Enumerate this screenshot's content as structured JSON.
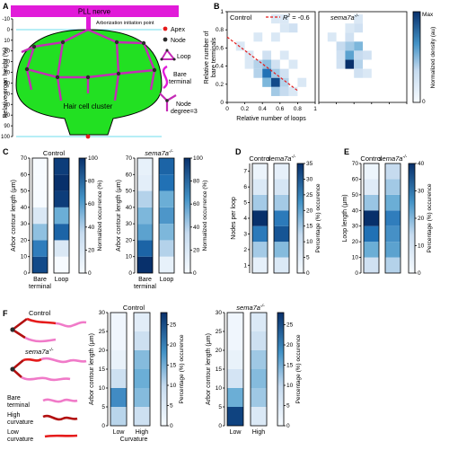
{
  "figure": {
    "panels": {
      "A": {
        "label": "A",
        "pll_nerve": "PLL nerve",
        "arborization_point": "Arborization initiation point",
        "hair_cell_cluster": "Hair cell cluster",
        "y_axis_label": "Relative organ height (%)",
        "y_ticks": [
          "-10",
          "0",
          "10",
          "20",
          "30",
          "40",
          "50",
          "60",
          "70",
          "80",
          "90",
          "100"
        ],
        "legend": {
          "apex": "Apex",
          "node": "Node",
          "loop": "Loop",
          "bare_terminal_1": "Bare",
          "bare_terminal_2": "terminal",
          "node_degree_1": "Node",
          "node_degree_2": "degree=3"
        },
        "colors": {
          "nerve": "#e11bd9",
          "cluster": "#22e022",
          "apex": "#e51b1b",
          "node": "#2b2b2b"
        }
      },
      "B": {
        "label": "B",
        "left_title": "Control",
        "right_title": "sema7a",
        "right_title_sup": "-/-",
        "r2_label": "R",
        "r2_sup": "2",
        "r2_value": " = -0.6",
        "y_label_1": "Relative number of",
        "y_label_2": "bare terminals",
        "x_label": "Relative number of loops",
        "x_ticks": [
          "0",
          "0.2",
          "0.4",
          "0.6",
          "0.8",
          "1"
        ],
        "y_ticks": [
          "0",
          "0.2",
          "0.4",
          "0.6",
          "0.8",
          "1"
        ],
        "colorbar_max": "Max",
        "colorbar_min": "0",
        "colorbar_label": "Normalized density (au)"
      },
      "C": {
        "label": "C",
        "groups": [
          {
            "title": "Control",
            "sup": ""
          },
          {
            "title": "sema7a",
            "sup": "-/-"
          }
        ],
        "y_label": "Arbor contour length (μm)",
        "y_ticks": [
          "0",
          "10",
          "20",
          "30",
          "40",
          "50",
          "60",
          "70"
        ],
        "x_cat_1a": "Bare",
        "x_cat_1b": "terminal",
        "x_cat_2": "Loop",
        "cb_ticks": [
          "0",
          "20",
          "40",
          "60",
          "80",
          "100"
        ],
        "cb_label": "Normalized occurrence (%)"
      },
      "D": {
        "label": "D",
        "col_1": "Control",
        "col_2": "sema7a",
        "col_2_sup": "-/-",
        "y_label": "Nodes per loop",
        "y_ticks": [
          "1",
          "2",
          "3",
          "4",
          "5",
          "6",
          "7"
        ],
        "cb_ticks": [
          "0",
          "5",
          "10",
          "15",
          "20",
          "25",
          "30",
          "35"
        ],
        "cb_label": "Percentage (%) occurence"
      },
      "E": {
        "label": "E",
        "col_1": "Control",
        "col_2": "sema7a",
        "col_2_sup": "-/-",
        "y_label": "Loop length (μm)",
        "y_ticks": [
          "0",
          "10",
          "20",
          "30",
          "40",
          "50",
          "60",
          "70"
        ],
        "cb_ticks": [
          "0",
          "10",
          "20",
          "30",
          "40"
        ],
        "cb_label": "Percentage (%) occurence"
      },
      "F": {
        "label": "F",
        "control": "Control",
        "mutant": "sema7a",
        "mutant_sup": "-/-",
        "legend_bare_1": "Bare",
        "legend_bare_2": "terminal",
        "legend_high_1": "High",
        "legend_high_2": "curvature",
        "legend_low_1": "Low",
        "legend_low_2": "curvature",
        "groups": [
          {
            "title": "Control",
            "sup": ""
          },
          {
            "title": "sema7a",
            "sup": "-/-"
          }
        ],
        "y_label": "Arbor contour length (μm)",
        "y_ticks": [
          "0",
          "5",
          "10",
          "15",
          "20",
          "25",
          "30"
        ],
        "x_cat_1": "Low",
        "x_cat_2": "High",
        "x_label": "Curvature",
        "cb_ticks": [
          "0",
          "5",
          "10",
          "15",
          "20",
          "25"
        ],
        "cb_label": "Percentage (%) occurence"
      }
    }
  },
  "chart_data": [
    {
      "type": "heatmap",
      "panel": "B-Control",
      "x_range": [
        0,
        1
      ],
      "y_range": [
        0,
        1
      ],
      "fit_line": {
        "r2": -0.6,
        "x": [
          0.0,
          0.8
        ],
        "y": [
          0.72,
          0.13
        ]
      },
      "cells": [
        {
          "x": 0.55,
          "y": 0.92,
          "v": 0.15
        },
        {
          "x": 0.65,
          "y": 0.92,
          "v": 0.15
        },
        {
          "x": 0.65,
          "y": 0.82,
          "v": 0.15
        },
        {
          "x": 0.75,
          "y": 0.82,
          "v": 0.2
        },
        {
          "x": 0.35,
          "y": 0.72,
          "v": 0.15
        },
        {
          "x": 0.55,
          "y": 0.72,
          "v": 0.15
        },
        {
          "x": 0.15,
          "y": 0.62,
          "v": 0.15
        },
        {
          "x": 0.25,
          "y": 0.52,
          "v": 0.15
        },
        {
          "x": 0.45,
          "y": 0.52,
          "v": 0.2
        },
        {
          "x": 0.65,
          "y": 0.52,
          "v": 0.15
        },
        {
          "x": 0.25,
          "y": 0.42,
          "v": 0.15
        },
        {
          "x": 0.35,
          "y": 0.42,
          "v": 0.3
        },
        {
          "x": 0.45,
          "y": 0.42,
          "v": 0.4
        },
        {
          "x": 0.55,
          "y": 0.42,
          "v": 0.2
        },
        {
          "x": 0.75,
          "y": 0.42,
          "v": 0.15
        },
        {
          "x": 0.35,
          "y": 0.32,
          "v": 0.3
        },
        {
          "x": 0.45,
          "y": 0.32,
          "v": 0.75
        },
        {
          "x": 0.55,
          "y": 0.32,
          "v": 0.35
        },
        {
          "x": 0.65,
          "y": 0.32,
          "v": 0.2
        },
        {
          "x": 0.45,
          "y": 0.22,
          "v": 0.45
        },
        {
          "x": 0.55,
          "y": 0.22,
          "v": 0.9
        },
        {
          "x": 0.65,
          "y": 0.22,
          "v": 0.3
        },
        {
          "x": 0.55,
          "y": 0.12,
          "v": 0.35
        },
        {
          "x": 0.65,
          "y": 0.12,
          "v": 0.25
        },
        {
          "x": 0.75,
          "y": 0.12,
          "v": 0.15
        },
        {
          "x": 0.85,
          "y": 0.22,
          "v": 0.15
        }
      ]
    },
    {
      "type": "heatmap",
      "panel": "B-sema7a",
      "x_range": [
        0,
        1
      ],
      "y_range": [
        0,
        1
      ],
      "cells": [
        {
          "x": 0.45,
          "y": 0.92,
          "v": 0.15
        },
        {
          "x": 0.35,
          "y": 0.82,
          "v": 0.15
        },
        {
          "x": 0.45,
          "y": 0.82,
          "v": 0.2
        },
        {
          "x": 0.15,
          "y": 0.72,
          "v": 0.15
        },
        {
          "x": 0.35,
          "y": 0.72,
          "v": 0.2
        },
        {
          "x": 0.25,
          "y": 0.62,
          "v": 0.25
        },
        {
          "x": 0.35,
          "y": 0.62,
          "v": 0.35
        },
        {
          "x": 0.45,
          "y": 0.62,
          "v": 0.45
        },
        {
          "x": 0.25,
          "y": 0.52,
          "v": 0.2
        },
        {
          "x": 0.35,
          "y": 0.52,
          "v": 0.55
        },
        {
          "x": 0.45,
          "y": 0.52,
          "v": 0.25
        },
        {
          "x": 0.55,
          "y": 0.52,
          "v": 0.2
        },
        {
          "x": 0.35,
          "y": 0.42,
          "v": 1.0
        },
        {
          "x": 0.45,
          "y": 0.42,
          "v": 0.3
        },
        {
          "x": 0.25,
          "y": 0.42,
          "v": 0.2
        },
        {
          "x": 0.45,
          "y": 0.32,
          "v": 0.2
        },
        {
          "x": 0.55,
          "y": 0.32,
          "v": 0.15
        }
      ]
    },
    {
      "type": "heatmap",
      "panel": "C-Control",
      "bin_edges": [
        0,
        10,
        20,
        30,
        40,
        50,
        60,
        70
      ],
      "columns": [
        "Bare terminal",
        "Loop"
      ],
      "values": [
        [
          90,
          70,
          40,
          15,
          0,
          0,
          0
        ],
        [
          0,
          15,
          80,
          50,
          95,
          100,
          95
        ]
      ],
      "cb_range": [
        0,
        100
      ]
    },
    {
      "type": "heatmap",
      "panel": "C-sema7a",
      "bin_edges": [
        0,
        10,
        20,
        30,
        40,
        50,
        60,
        70
      ],
      "columns": [
        "Bare terminal",
        "Loop"
      ],
      "values": [
        [
          100,
          80,
          55,
          45,
          30,
          10,
          8
        ],
        [
          8,
          30,
          45,
          60,
          50,
          75,
          80
        ]
      ],
      "cb_range": [
        0,
        100
      ]
    },
    {
      "type": "heatmap",
      "panel": "D",
      "bin_edges": [
        0.5,
        1.5,
        2.5,
        3.5,
        4.5,
        5.5,
        6.5,
        7.5
      ],
      "columns": [
        "Control",
        "sema7a-/-"
      ],
      "values": [
        [
          3,
          12,
          25,
          35,
          12,
          5,
          2
        ],
        [
          5,
          15,
          30,
          25,
          12,
          6,
          3
        ]
      ],
      "cb_range": [
        0,
        35
      ]
    },
    {
      "type": "heatmap",
      "panel": "E",
      "bin_edges": [
        0,
        10,
        20,
        30,
        40,
        50,
        60,
        70
      ],
      "columns": [
        "Control",
        "sema7a-/-"
      ],
      "values": [
        [
          8,
          20,
          30,
          40,
          15,
          5,
          2
        ],
        [
          12,
          22,
          25,
          28,
          20,
          14,
          10
        ]
      ],
      "cb_range": [
        0,
        40
      ]
    },
    {
      "type": "heatmap",
      "panel": "F-Control",
      "bin_edges": [
        0,
        5,
        10,
        15,
        20,
        25,
        30
      ],
      "columns": [
        "Low",
        "High"
      ],
      "values": [
        [
          8,
          18,
          6,
          2,
          1,
          1
        ],
        [
          6,
          12,
          14,
          12,
          6,
          3
        ]
      ],
      "cb_range": [
        0,
        28
      ]
    },
    {
      "type": "heatmap",
      "panel": "F-sema7a",
      "bin_edges": [
        0,
        5,
        10,
        15,
        20,
        25,
        30
      ],
      "columns": [
        "Low",
        "High"
      ],
      "values": [
        [
          26,
          14,
          5,
          2,
          1,
          1
        ],
        [
          4,
          10,
          12,
          10,
          6,
          4
        ]
      ],
      "cb_range": [
        0,
        28
      ]
    }
  ]
}
